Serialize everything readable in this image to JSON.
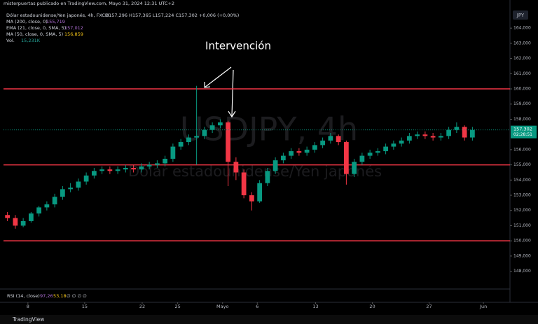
{
  "header": {
    "publisher": "misterpuertas publicado en TradingView.com, Mayo 31, 2024 12:31 UTC+2",
    "symbol": "Dólar estadounidense/Yen japonés, 4h, FXCM",
    "ohlc": "O157,296 H157,365 L157,224 C157,302 +0,006 (+0,00%)",
    "indicators": [
      {
        "name": "MA (200, close, 0)",
        "value": "155,719",
        "color": "#b06fd6"
      },
      {
        "name": "EMA (21, close, 0, SMA, 5)",
        "value": "157,012",
        "color": "#b06fd6"
      },
      {
        "name": "MA (50, close, 0, SMA, 5)",
        "value": "156,859",
        "color": "#f5c518"
      },
      {
        "name": "Vol.",
        "value": "15,231K",
        "color": "#26a69a"
      }
    ]
  },
  "currency": "JPY",
  "watermark": {
    "symbol": "USDJPY, 4h",
    "description": "Dólar estadounidense/Yen japonés"
  },
  "rsi": {
    "name": "RSI (14, close)",
    "values": [
      "97,26",
      "53,18",
      "∅ ∅ ∅ ∅"
    ]
  },
  "countdown": "02:28:51",
  "brand": "TradingView",
  "chart_data": {
    "type": "candlestick",
    "annotation": "Intervención",
    "up_color": "#089981",
    "down_color": "#f23645",
    "level_color": "#f23645",
    "levels": [
      160,
      155,
      150
    ],
    "last_price": {
      "value": 157.302,
      "label": "157,302"
    },
    "x": [
      0,
      1,
      2,
      3,
      4,
      5,
      6,
      7,
      8,
      9,
      10,
      11,
      12,
      13,
      14,
      15,
      16,
      17,
      18,
      19,
      20,
      21,
      22,
      23,
      24,
      25,
      26,
      27,
      28,
      29,
      30,
      31,
      32,
      33,
      34,
      35,
      36,
      37,
      38,
      39,
      40,
      41,
      42,
      43,
      44,
      45,
      46,
      47,
      48,
      49,
      50,
      51,
      52,
      53,
      54,
      55,
      56,
      57,
      58,
      59
    ],
    "open": [
      151.7,
      151.5,
      151.0,
      151.3,
      151.8,
      152.2,
      152.4,
      152.9,
      153.4,
      153.5,
      153.9,
      154.3,
      154.6,
      154.7,
      154.6,
      154.7,
      154.8,
      154.7,
      154.9,
      155.0,
      155.1,
      155.4,
      156.2,
      156.5,
      156.8,
      156.9,
      157.3,
      157.6,
      157.8,
      155.2,
      154.5,
      153.0,
      152.6,
      153.8,
      154.6,
      155.3,
      155.6,
      155.9,
      155.8,
      156.0,
      156.3,
      156.6,
      156.9,
      156.5,
      154.4,
      155.2,
      155.6,
      155.8,
      155.9,
      156.2,
      156.4,
      156.6,
      156.9,
      157.0,
      156.9,
      156.8,
      156.9,
      157.3,
      157.5,
      156.8
    ],
    "high": [
      151.9,
      151.7,
      151.5,
      151.9,
      152.3,
      152.6,
      153.1,
      153.6,
      153.8,
      154.1,
      154.5,
      154.8,
      154.9,
      154.9,
      154.9,
      155.0,
      155.0,
      155.1,
      155.2,
      155.3,
      155.6,
      156.4,
      156.7,
      157.0,
      160.2,
      157.5,
      157.8,
      158.0,
      157.9,
      155.5,
      154.7,
      153.2,
      154.0,
      154.8,
      155.5,
      155.8,
      156.1,
      156.1,
      156.2,
      156.5,
      156.8,
      157.1,
      157.0,
      156.6,
      155.4,
      155.8,
      156.0,
      156.1,
      156.4,
      156.6,
      156.8,
      157.1,
      157.2,
      157.2,
      157.1,
      157.1,
      157.5,
      157.8,
      157.6,
      157.5
    ],
    "low": [
      151.3,
      150.8,
      150.9,
      151.2,
      151.6,
      152.0,
      152.2,
      152.7,
      153.2,
      153.3,
      153.7,
      154.1,
      154.4,
      154.4,
      154.4,
      154.5,
      154.5,
      154.5,
      154.7,
      154.8,
      154.9,
      155.2,
      156.0,
      156.3,
      155.0,
      156.7,
      157.1,
      157.4,
      153.6,
      154.0,
      152.8,
      152.0,
      152.5,
      153.6,
      154.4,
      155.1,
      155.4,
      155.6,
      155.6,
      155.8,
      156.1,
      156.4,
      156.3,
      153.7,
      154.2,
      155.0,
      155.4,
      155.6,
      155.7,
      156.0,
      156.2,
      156.4,
      156.7,
      156.7,
      156.6,
      156.6,
      156.7,
      157.1,
      156.6,
      156.6
    ],
    "close": [
      151.5,
      151.0,
      151.3,
      151.8,
      152.2,
      152.4,
      152.9,
      153.4,
      153.5,
      153.9,
      154.3,
      154.6,
      154.7,
      154.6,
      154.7,
      154.8,
      154.7,
      154.9,
      155.0,
      155.1,
      155.4,
      156.2,
      156.5,
      156.8,
      156.9,
      157.3,
      157.6,
      157.8,
      155.2,
      154.5,
      153.0,
      152.6,
      153.8,
      154.6,
      155.3,
      155.6,
      155.9,
      155.8,
      156.0,
      156.3,
      156.6,
      156.9,
      156.5,
      154.4,
      155.2,
      155.6,
      155.8,
      155.9,
      156.2,
      156.4,
      156.6,
      156.9,
      157.0,
      156.9,
      156.8,
      156.9,
      157.3,
      157.5,
      156.8,
      157.3
    ],
    "xlim": [
      0,
      60
    ],
    "xticks": [
      {
        "value": 3.1,
        "label": "8"
      },
      {
        "value": 10.3,
        "label": "15"
      },
      {
        "value": 17.6,
        "label": "22"
      },
      {
        "value": 22.1,
        "label": "25"
      },
      {
        "value": 27.8,
        "label": "Mayo"
      },
      {
        "value": 32.2,
        "label": "6"
      },
      {
        "value": 39.6,
        "label": "13"
      },
      {
        "value": 46.8,
        "label": "20"
      },
      {
        "value": 54.0,
        "label": "27"
      },
      {
        "value": 60.9,
        "label": "Jun"
      }
    ],
    "ylim": [
      146.83,
      165.39
    ],
    "yticks": [
      {
        "value": 164,
        "label": "164,000"
      },
      {
        "value": 163,
        "label": "163,000"
      },
      {
        "value": 162,
        "label": "162,000"
      },
      {
        "value": 161,
        "label": "161,000"
      },
      {
        "value": 160,
        "label": "160,000"
      },
      {
        "value": 159,
        "label": "159,000"
      },
      {
        "value": 158,
        "label": "158,000"
      },
      {
        "value": 156,
        "label": "156,000"
      },
      {
        "value": 155,
        "label": "155,000"
      },
      {
        "value": 154,
        "label": "154,000"
      },
      {
        "value": 153,
        "label": "153,000"
      },
      {
        "value": 152,
        "label": "152,000"
      },
      {
        "value": 151,
        "label": "151,000"
      },
      {
        "value": 150,
        "label": "150,000"
      },
      {
        "value": 149,
        "label": "149,000"
      },
      {
        "value": 148,
        "label": "148,000"
      }
    ]
  }
}
